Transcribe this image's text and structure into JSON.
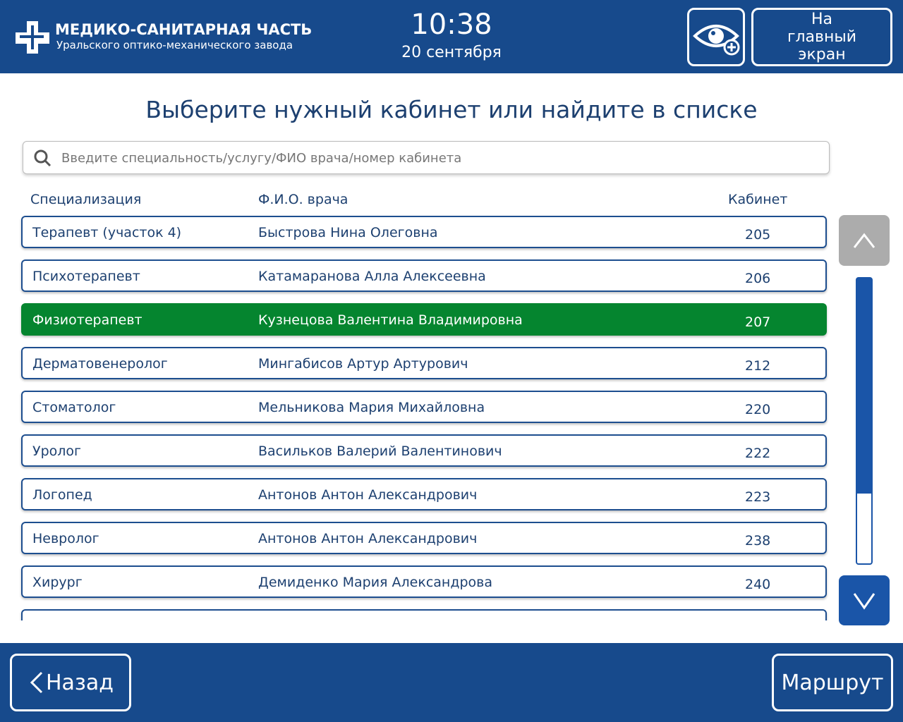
{
  "header": {
    "logo_title": "МЕДИКО-САНИТАРНАЯ ЧАСТЬ",
    "logo_subtitle": "Уральского оптико-механического завода",
    "time": "10:38",
    "date": "20 сентября",
    "home_button": "На главный экран"
  },
  "title": "Выберите нужный кабинет или найдите в списке",
  "search_placeholder": "Введите специальность/услугу/ФИО врача/номер кабинета",
  "table": {
    "columns": [
      "Специализация",
      "Ф.И.О. врача",
      "Кабинет"
    ],
    "selected": 2,
    "rows": [
      [
        "Терапевт (участок 4)",
        "Быстрова Нина Олеговна",
        "205"
      ],
      [
        "Психотерапевт",
        "Катамаранова Алла Алексеевна",
        "206"
      ],
      [
        "Физиотерапевт",
        "Кузнецова Валентина Владимировна",
        "207"
      ],
      [
        "Дерматовенеролог",
        "Мингабисов Артур Артурович",
        "212"
      ],
      [
        "Стоматолог",
        "Мельникова Мария Михайловна",
        "220"
      ],
      [
        "Уролог",
        "Васильков Валерий Валентинович",
        "222"
      ],
      [
        "Логопед",
        "Антонов Антон Александрович",
        "223"
      ],
      [
        "Невролог",
        "Антонов Антон Александрович",
        "238"
      ],
      [
        "Хирург",
        "Демиденко Мария Александрова",
        "240"
      ]
    ]
  },
  "footer": {
    "back_button": "Назад",
    "route_button": "Маршрут"
  }
}
